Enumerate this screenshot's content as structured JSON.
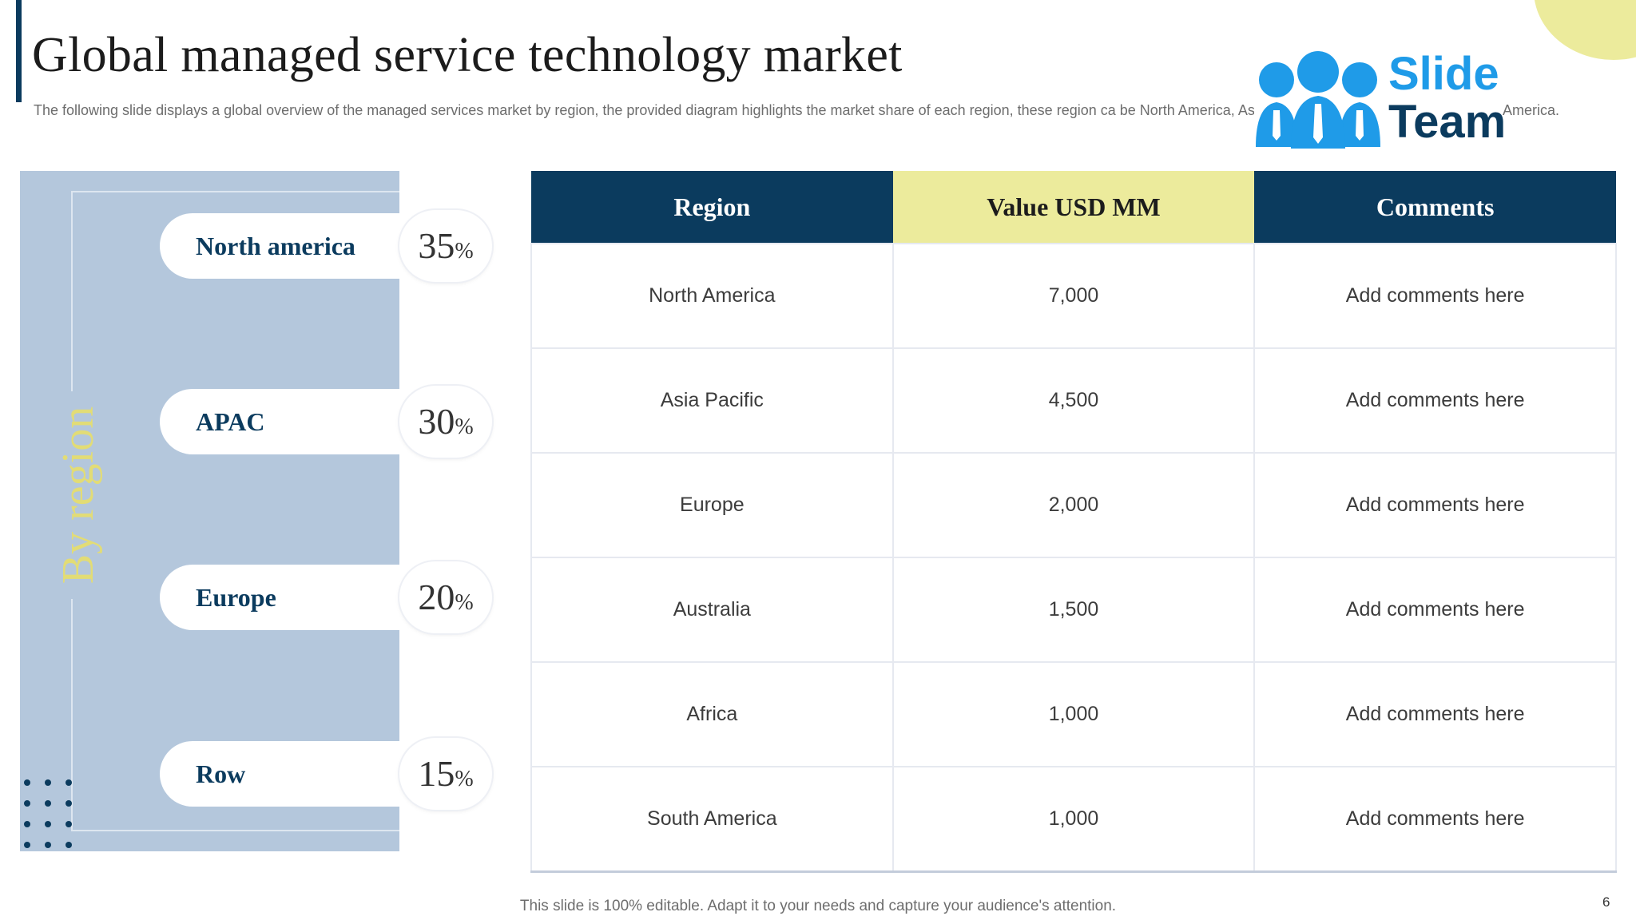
{
  "title": "Global managed service technology market",
  "subtitle": "The following slide displays a global overview of the  managed services market by region, the provided diagram highlights the market share of each region, these region ca be North America, Asia Pacific, Europe, Australia and South America.",
  "logo": {
    "line1": "Slide",
    "line2": "Team"
  },
  "side_label": "By region",
  "shares": [
    {
      "label": "North america",
      "value": "35",
      "unit": "%"
    },
    {
      "label": "APAC",
      "value": "30",
      "unit": "%"
    },
    {
      "label": "Europe",
      "value": "20",
      "unit": "%"
    },
    {
      "label": "Row",
      "value": "15",
      "unit": "%"
    }
  ],
  "table": {
    "headers": [
      "Region",
      "Value USD MM",
      "Comments"
    ],
    "rows": [
      [
        "North America",
        "7,000",
        "Add comments here"
      ],
      [
        "Asia Pacific",
        "4,500",
        "Add comments here"
      ],
      [
        "Europe",
        "2,000",
        "Add comments here"
      ],
      [
        "Australia",
        "1,500",
        "Add comments here"
      ],
      [
        "Africa",
        "1,000",
        "Add comments here"
      ],
      [
        "South America",
        "1,000",
        "Add comments here"
      ]
    ]
  },
  "footer": "This slide is 100% editable. Adapt it to your needs and capture your audience's attention.",
  "page_number": "6",
  "colors": {
    "navy": "#0b3b5e",
    "yellow": "#eceb9c",
    "panel": "#b4c7dc",
    "brand_blue": "#1f9be8"
  }
}
